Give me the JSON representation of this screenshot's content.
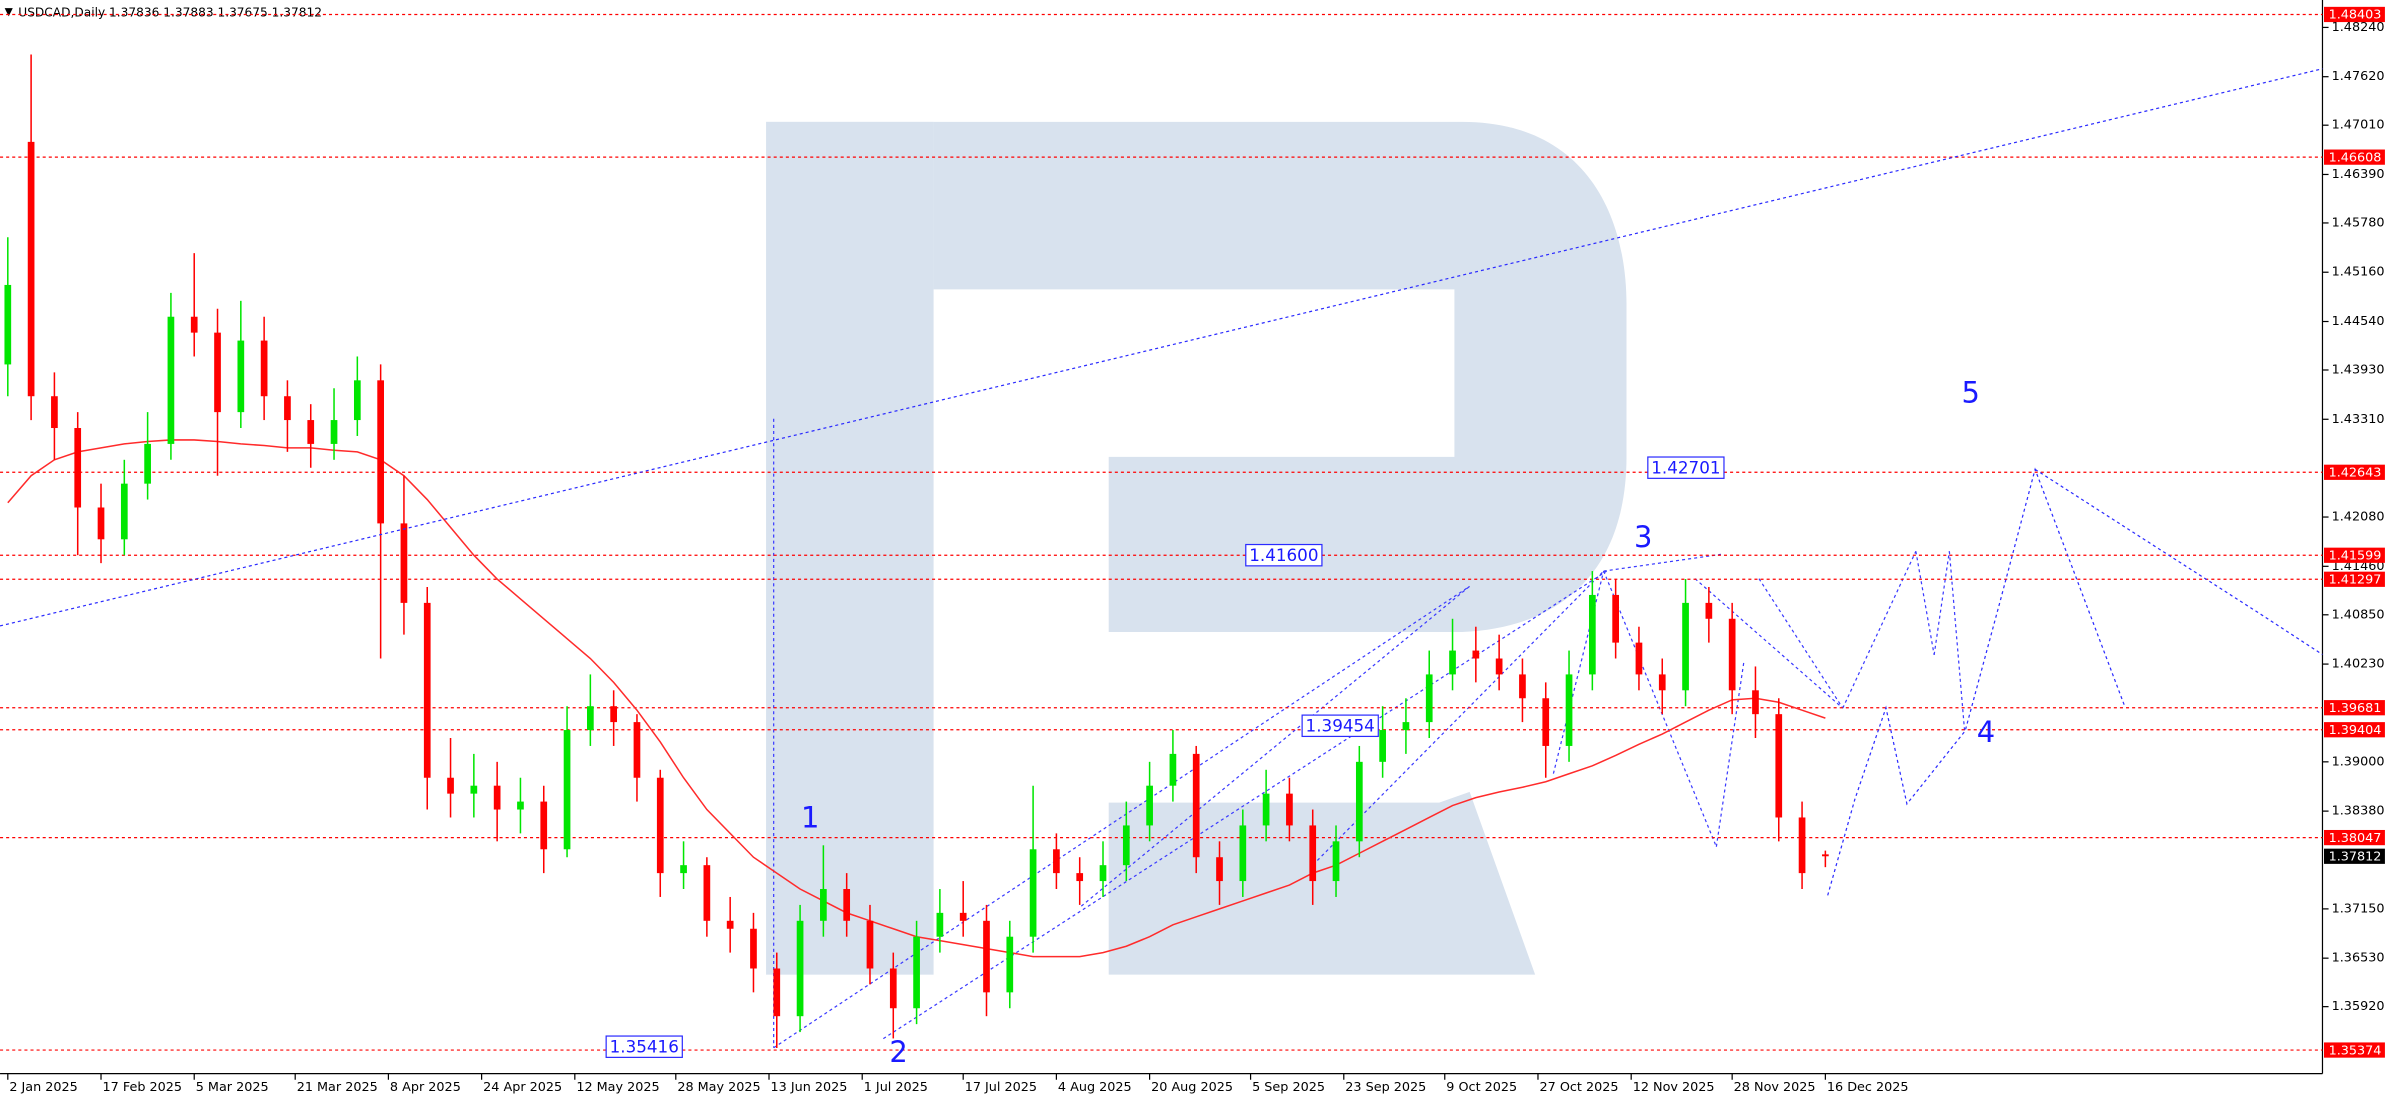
{
  "chart_data": {
    "type": "candlestick",
    "header": "USDCAD,Daily  1.37836 1.37883 1.37675 1.37812",
    "x": [
      0,
      3,
      6,
      9,
      12,
      15,
      18,
      21,
      24,
      27,
      30,
      33,
      36,
      39,
      42,
      45,
      48,
      51,
      54,
      57,
      60,
      63,
      66,
      69,
      72,
      75,
      78,
      81,
      84,
      87,
      90,
      93,
      96,
      99,
      102,
      105,
      108,
      111,
      114,
      117,
      120,
      123,
      126,
      129,
      132,
      135,
      138,
      141,
      144,
      147,
      150,
      153,
      156,
      159,
      162,
      165,
      168,
      171,
      174,
      177,
      180,
      183,
      186,
      189,
      192,
      195,
      198,
      201,
      204,
      207,
      210,
      213,
      216,
      219,
      222,
      225,
      228,
      231,
      234
    ],
    "open": [
      1.44,
      1.468,
      1.436,
      1.432,
      1.422,
      1.418,
      1.425,
      1.43,
      1.446,
      1.444,
      1.434,
      1.443,
      1.436,
      1.433,
      1.43,
      1.433,
      1.438,
      1.42,
      1.41,
      1.388,
      1.386,
      1.387,
      1.384,
      1.385,
      1.379,
      1.394,
      1.397,
      1.395,
      1.388,
      1.376,
      1.377,
      1.37,
      1.369,
      1.364,
      1.358,
      1.37,
      1.374,
      1.37,
      1.364,
      1.359,
      1.368,
      1.371,
      1.37,
      1.361,
      1.368,
      1.379,
      1.376,
      1.375,
      1.377,
      1.382,
      1.387,
      1.391,
      1.378,
      1.375,
      1.382,
      1.386,
      1.382,
      1.375,
      1.38,
      1.39,
      1.394,
      1.395,
      1.401,
      1.404,
      1.403,
      1.401,
      1.398,
      1.392,
      1.401,
      1.411,
      1.405,
      1.401,
      1.399,
      1.41,
      1.408,
      1.399,
      1.396,
      1.383,
      1.37836
    ],
    "high": [
      1.456,
      1.479,
      1.439,
      1.434,
      1.425,
      1.428,
      1.434,
      1.449,
      1.454,
      1.447,
      1.448,
      1.446,
      1.438,
      1.435,
      1.437,
      1.441,
      1.44,
      1.426,
      1.412,
      1.393,
      1.391,
      1.39,
      1.388,
      1.387,
      1.397,
      1.401,
      1.399,
      1.396,
      1.389,
      1.38,
      1.378,
      1.373,
      1.371,
      1.366,
      1.372,
      1.3795,
      1.376,
      1.372,
      1.366,
      1.37,
      1.374,
      1.375,
      1.372,
      1.37,
      1.387,
      1.381,
      1.378,
      1.38,
      1.385,
      1.39,
      1.394,
      1.392,
      1.38,
      1.384,
      1.389,
      1.388,
      1.384,
      1.382,
      1.392,
      1.397,
      1.398,
      1.404,
      1.408,
      1.407,
      1.406,
      1.403,
      1.4,
      1.404,
      1.414,
      1.413,
      1.407,
      1.403,
      1.413,
      1.412,
      1.41,
      1.402,
      1.398,
      1.385,
      1.37883
    ],
    "low": [
      1.436,
      1.433,
      1.428,
      1.416,
      1.415,
      1.416,
      1.423,
      1.428,
      1.441,
      1.426,
      1.432,
      1.433,
      1.429,
      1.427,
      1.428,
      1.431,
      1.403,
      1.406,
      1.384,
      1.383,
      1.383,
      1.38,
      1.381,
      1.376,
      1.378,
      1.392,
      1.392,
      1.385,
      1.373,
      1.374,
      1.368,
      1.366,
      1.361,
      1.354,
      1.356,
      1.368,
      1.368,
      1.362,
      1.3552,
      1.357,
      1.366,
      1.368,
      1.358,
      1.359,
      1.366,
      1.374,
      1.372,
      1.373,
      1.375,
      1.38,
      1.385,
      1.376,
      1.372,
      1.373,
      1.38,
      1.38,
      1.372,
      1.373,
      1.378,
      1.388,
      1.391,
      1.393,
      1.399,
      1.4,
      1.399,
      1.395,
      1.388,
      1.39,
      1.399,
      1.403,
      1.399,
      1.396,
      1.397,
      1.405,
      1.396,
      1.393,
      1.38,
      1.374,
      1.37675
    ],
    "close": [
      1.45,
      1.436,
      1.432,
      1.422,
      1.418,
      1.425,
      1.43,
      1.446,
      1.444,
      1.434,
      1.443,
      1.436,
      1.433,
      1.43,
      1.433,
      1.438,
      1.42,
      1.41,
      1.388,
      1.386,
      1.387,
      1.384,
      1.385,
      1.379,
      1.394,
      1.397,
      1.395,
      1.388,
      1.376,
      1.377,
      1.37,
      1.369,
      1.364,
      1.358,
      1.37,
      1.374,
      1.37,
      1.364,
      1.359,
      1.368,
      1.371,
      1.37,
      1.361,
      1.368,
      1.379,
      1.376,
      1.375,
      1.377,
      1.382,
      1.387,
      1.391,
      1.378,
      1.375,
      1.382,
      1.386,
      1.382,
      1.375,
      1.38,
      1.39,
      1.394,
      1.395,
      1.401,
      1.404,
      1.403,
      1.401,
      1.398,
      1.392,
      1.401,
      1.411,
      1.405,
      1.401,
      1.399,
      1.41,
      1.408,
      1.399,
      1.396,
      1.383,
      1.376,
      1.37812
    ],
    "up_color": "#00e600",
    "down_color": "#ff0000",
    "ma_values": [
      1.4226,
      1.426,
      1.428,
      1.429,
      1.4295,
      1.43,
      1.4303,
      1.4305,
      1.4305,
      1.4303,
      1.43,
      1.4298,
      1.4295,
      1.4295,
      1.4292,
      1.429,
      1.428,
      1.426,
      1.423,
      1.4195,
      1.416,
      1.413,
      1.4105,
      1.408,
      1.4055,
      1.403,
      1.4,
      1.3965,
      1.3925,
      1.388,
      1.384,
      1.381,
      1.378,
      1.376,
      1.374,
      1.3725,
      1.371,
      1.37,
      1.369,
      1.368,
      1.3675,
      1.367,
      1.3665,
      1.366,
      1.3655,
      1.3655,
      1.3655,
      1.366,
      1.3668,
      1.368,
      1.3695,
      1.3705,
      1.3715,
      1.3725,
      1.3735,
      1.3745,
      1.376,
      1.377,
      1.3785,
      1.38,
      1.3815,
      1.383,
      1.3845,
      1.3855,
      1.3862,
      1.3868,
      1.3875,
      1.3885,
      1.3895,
      1.3908,
      1.3922,
      1.3935,
      1.395,
      1.3965,
      1.3978,
      1.398,
      1.3975,
      1.3965,
      1.3955
    ],
    "ma_color": "#ff2b2b",
    "xlim": [
      -1,
      298
    ],
    "ylim": [
      1.35077,
      1.48585
    ],
    "xticks": [
      {
        "value": 0,
        "label": "2 Jan 2025"
      },
      {
        "value": 12,
        "label": "17 Feb 2025"
      },
      {
        "value": 24,
        "label": "5 Mar 2025"
      },
      {
        "value": 37,
        "label": "21 Mar 2025"
      },
      {
        "value": 49,
        "label": "8 Apr 2025"
      },
      {
        "value": 61,
        "label": "24 Apr 2025"
      },
      {
        "value": 73,
        "label": "12 May 2025"
      },
      {
        "value": 86,
        "label": "28 May 2025"
      },
      {
        "value": 98,
        "label": "13 Jun 2025"
      },
      {
        "value": 110,
        "label": "1 Jul 2025"
      },
      {
        "value": 123,
        "label": "17 Jul 2025"
      },
      {
        "value": 135,
        "label": "4 Aug 2025"
      },
      {
        "value": 147,
        "label": "20 Aug 2025"
      },
      {
        "value": 160,
        "label": "5 Sep 2025"
      },
      {
        "value": 172,
        "label": "23 Sep 2025"
      },
      {
        "value": 185,
        "label": "9 Oct 2025"
      },
      {
        "value": 197,
        "label": "27 Oct 2025"
      },
      {
        "value": 209,
        "label": "12 Nov 2025"
      },
      {
        "value": 222,
        "label": "28 Nov 2025"
      },
      {
        "value": 234,
        "label": "16 Dec 2025"
      }
    ],
    "yticks": [
      {
        "value": 1.4824,
        "label": "1.48240"
      },
      {
        "value": 1.4762,
        "label": "1.47620"
      },
      {
        "value": 1.4701,
        "label": "1.47010"
      },
      {
        "value": 1.4639,
        "label": "1.46390"
      },
      {
        "value": 1.4578,
        "label": "1.45780"
      },
      {
        "value": 1.4516,
        "label": "1.45160"
      },
      {
        "value": 1.4454,
        "label": "1.44540"
      },
      {
        "value": 1.4393,
        "label": "1.43930"
      },
      {
        "value": 1.4331,
        "label": "1.43310"
      },
      {
        "value": 1.4208,
        "label": "1.42080"
      },
      {
        "value": 1.4146,
        "label": "1.41460"
      },
      {
        "value": 1.4085,
        "label": "1.40850"
      },
      {
        "value": 1.4023,
        "label": "1.40230"
      },
      {
        "value": 1.39,
        "label": "1.39000"
      },
      {
        "value": 1.3838,
        "label": "1.38380"
      },
      {
        "value": 1.3715,
        "label": "1.37150"
      },
      {
        "value": 1.3653,
        "label": "1.36530"
      },
      {
        "value": 1.3592,
        "label": "1.35920"
      }
    ],
    "levels": [
      1.48403,
      1.46608,
      1.42643,
      1.41599,
      1.41297,
      1.39681,
      1.39404,
      1.38047,
      1.35374
    ],
    "level_color": "#ff0000",
    "current": 1.37812,
    "annotations": [
      1.42701,
      {
        "value": 1.416,
        "label": "1.41600"
      },
      1.39454,
      1.35416
    ],
    "trend_color": "#2b2bff",
    "trendline": {
      "x": [
        -1,
        298
      ],
      "y": [
        1.4071,
        1.4772
      ]
    },
    "forecast": [
      {
        "x": [
          234.3,
          237.8,
          241.8,
          244.5,
          252,
          256.5,
          261,
          266.7,
          272.5
        ],
        "y": [
          1.3732,
          1.3853,
          1.3968,
          1.3847,
          1.3939,
          1.4102,
          1.4268,
          1.4121,
          1.3971
        ]
      },
      {
        "x": [
          261,
          290,
          298
        ],
        "y": [
          1.4268,
          1.4086,
          1.4035
        ]
      }
    ],
    "waves": [
      "1",
      "2",
      "3",
      "4",
      "5"
    ]
  }
}
